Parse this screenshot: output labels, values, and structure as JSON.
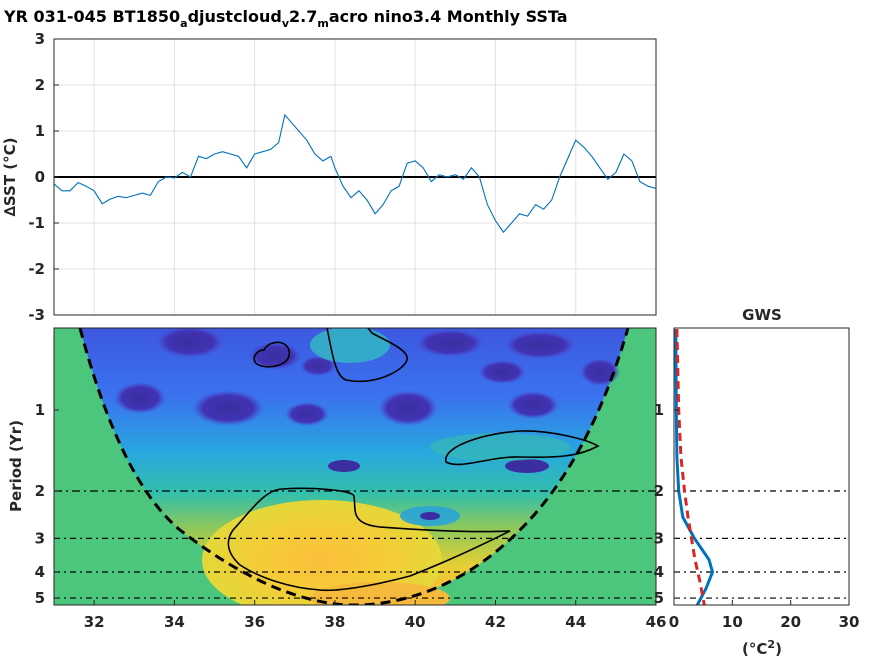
{
  "chart_data": [
    {
      "type": "line",
      "title_parts": [
        "YR 031-045 BT1850",
        "a",
        "djustcloud",
        "v",
        "2.7",
        "m",
        "acro nino3.4 Monthly SSTa"
      ],
      "ylabel": "∆SST (°C)",
      "xlim": [
        31,
        46
      ],
      "ylim": [
        -3,
        3
      ],
      "yticks": [
        "-3",
        "-2",
        "-1",
        "0",
        "1",
        "2",
        "3"
      ],
      "grid": true,
      "reference_line": 0,
      "series": [
        {
          "color": "#0072bd",
          "points": [
            [
              31.0,
              -0.15
            ],
            [
              31.2,
              -0.3
            ],
            [
              31.4,
              -0.3
            ],
            [
              31.6,
              -0.12
            ],
            [
              31.8,
              -0.2
            ],
            [
              32.0,
              -0.3
            ],
            [
              32.2,
              -0.58
            ],
            [
              32.4,
              -0.48
            ],
            [
              32.6,
              -0.42
            ],
            [
              32.8,
              -0.45
            ],
            [
              33.0,
              -0.4
            ],
            [
              33.2,
              -0.35
            ],
            [
              33.4,
              -0.4
            ],
            [
              33.6,
              -0.1
            ],
            [
              33.8,
              0.0
            ],
            [
              34.0,
              -0.02
            ],
            [
              34.2,
              0.1
            ],
            [
              34.4,
              0.0
            ],
            [
              34.6,
              0.45
            ],
            [
              34.8,
              0.4
            ],
            [
              35.0,
              0.5
            ],
            [
              35.2,
              0.55
            ],
            [
              35.4,
              0.5
            ],
            [
              35.6,
              0.45
            ],
            [
              35.8,
              0.2
            ],
            [
              36.0,
              0.5
            ],
            [
              36.2,
              0.55
            ],
            [
              36.4,
              0.6
            ],
            [
              36.6,
              0.75
            ],
            [
              36.75,
              1.35
            ],
            [
              36.9,
              1.2
            ],
            [
              37.1,
              1.0
            ],
            [
              37.3,
              0.8
            ],
            [
              37.5,
              0.5
            ],
            [
              37.7,
              0.35
            ],
            [
              37.9,
              0.45
            ],
            [
              38.0,
              0.2
            ],
            [
              38.2,
              -0.2
            ],
            [
              38.4,
              -0.45
            ],
            [
              38.6,
              -0.3
            ],
            [
              38.8,
              -0.5
            ],
            [
              39.0,
              -0.8
            ],
            [
              39.2,
              -0.6
            ],
            [
              39.4,
              -0.3
            ],
            [
              39.6,
              -0.2
            ],
            [
              39.8,
              0.3
            ],
            [
              40.0,
              0.35
            ],
            [
              40.2,
              0.2
            ],
            [
              40.4,
              -0.1
            ],
            [
              40.6,
              0.05
            ],
            [
              40.8,
              0.0
            ],
            [
              41.0,
              0.05
            ],
            [
              41.2,
              -0.05
            ],
            [
              41.4,
              0.2
            ],
            [
              41.6,
              0.0
            ],
            [
              41.8,
              -0.6
            ],
            [
              42.0,
              -0.95
            ],
            [
              42.2,
              -1.2
            ],
            [
              42.4,
              -1.0
            ],
            [
              42.6,
              -0.8
            ],
            [
              42.8,
              -0.85
            ],
            [
              43.0,
              -0.6
            ],
            [
              43.2,
              -0.7
            ],
            [
              43.4,
              -0.5
            ],
            [
              43.6,
              0.0
            ],
            [
              43.8,
              0.4
            ],
            [
              44.0,
              0.8
            ],
            [
              44.2,
              0.65
            ],
            [
              44.4,
              0.45
            ],
            [
              44.6,
              0.2
            ],
            [
              44.8,
              -0.05
            ],
            [
              45.0,
              0.1
            ],
            [
              45.2,
              0.5
            ],
            [
              45.4,
              0.35
            ],
            [
              45.6,
              -0.1
            ],
            [
              45.8,
              -0.2
            ],
            [
              46.0,
              -0.25
            ]
          ]
        }
      ]
    },
    {
      "type": "heatmap",
      "subtype": "wavelet power spectrum",
      "ylabel": "Period (Yr)",
      "xlim": [
        31,
        46
      ],
      "xticks": [
        "32",
        "34",
        "36",
        "38",
        "40",
        "42",
        "44",
        "46"
      ],
      "yticks": [
        "1",
        "2",
        "3",
        "4",
        "5"
      ],
      "reference_periods": [
        2,
        3,
        4,
        5
      ],
      "cone_of_influence": true,
      "colormap": "parula",
      "mask_color": "#4cc67c"
    },
    {
      "type": "line",
      "title": "GWS",
      "xlabel_parts": [
        "(°C",
        "2",
        ")"
      ],
      "xlim": [
        0,
        30
      ],
      "xticks": [
        "0",
        "10",
        "20",
        "30"
      ],
      "yticks": [
        "1",
        "2",
        "3",
        "4",
        "5"
      ],
      "reference_periods": [
        2,
        3,
        4,
        5
      ],
      "series": [
        {
          "style": "solid",
          "color": "#0072bd",
          "points": [
            [
              0.3,
              0.5
            ],
            [
              0.4,
              1.0
            ],
            [
              0.5,
              1.5
            ],
            [
              0.8,
              2.0
            ],
            [
              1.5,
              2.5
            ],
            [
              3.5,
              3.0
            ],
            [
              6.0,
              3.6
            ],
            [
              6.6,
              4.0
            ],
            [
              5.5,
              4.6
            ],
            [
              4.0,
              5.3
            ]
          ]
        },
        {
          "style": "dashed",
          "color": "#d62728",
          "points": [
            [
              0.5,
              0.5
            ],
            [
              0.8,
              1.0
            ],
            [
              1.2,
              1.5
            ],
            [
              1.8,
              2.0
            ],
            [
              2.4,
              2.5
            ],
            [
              3.0,
              3.0
            ],
            [
              3.6,
              3.6
            ],
            [
              4.4,
              4.3
            ],
            [
              5.2,
              5.3
            ]
          ]
        }
      ]
    }
  ]
}
